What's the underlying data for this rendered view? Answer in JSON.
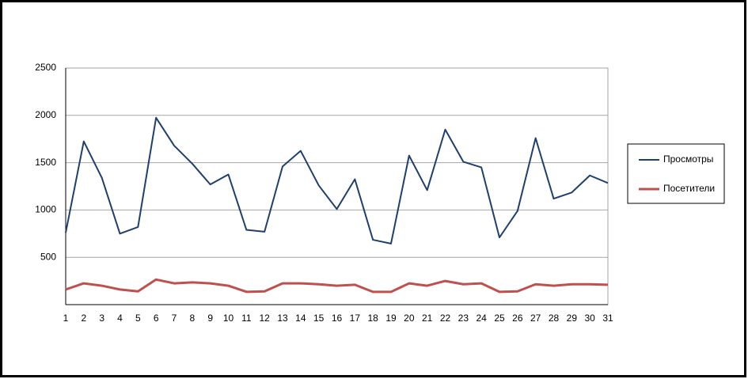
{
  "chart_data": {
    "type": "line",
    "categories": [
      "1",
      "2",
      "3",
      "4",
      "5",
      "6",
      "7",
      "8",
      "9",
      "10",
      "11",
      "12",
      "13",
      "14",
      "15",
      "16",
      "17",
      "18",
      "19",
      "20",
      "21",
      "22",
      "23",
      "24",
      "25",
      "26",
      "27",
      "28",
      "29",
      "30",
      "31"
    ],
    "series": [
      {
        "name": "Просмотры",
        "color": "#1f3f6e",
        "values": [
          760,
          1725,
          1340,
          750,
          820,
          1975,
          1680,
          1490,
          1270,
          1375,
          790,
          770,
          1460,
          1625,
          1260,
          1010,
          1325,
          685,
          645,
          1575,
          1210,
          1850,
          1510,
          1450,
          710,
          990,
          1760,
          1120,
          1185,
          1365,
          1285
        ]
      },
      {
        "name": "Посетители",
        "color": "#c0504d",
        "values": [
          160,
          225,
          200,
          160,
          140,
          265,
          225,
          235,
          225,
          200,
          135,
          140,
          225,
          225,
          215,
          200,
          210,
          135,
          135,
          225,
          200,
          250,
          215,
          225,
          135,
          140,
          215,
          200,
          215,
          215,
          210
        ]
      }
    ],
    "ylim": [
      0,
      2500
    ],
    "yticks": [
      500,
      1000,
      1500,
      2000,
      2500
    ],
    "grid": true,
    "legend": "right"
  }
}
